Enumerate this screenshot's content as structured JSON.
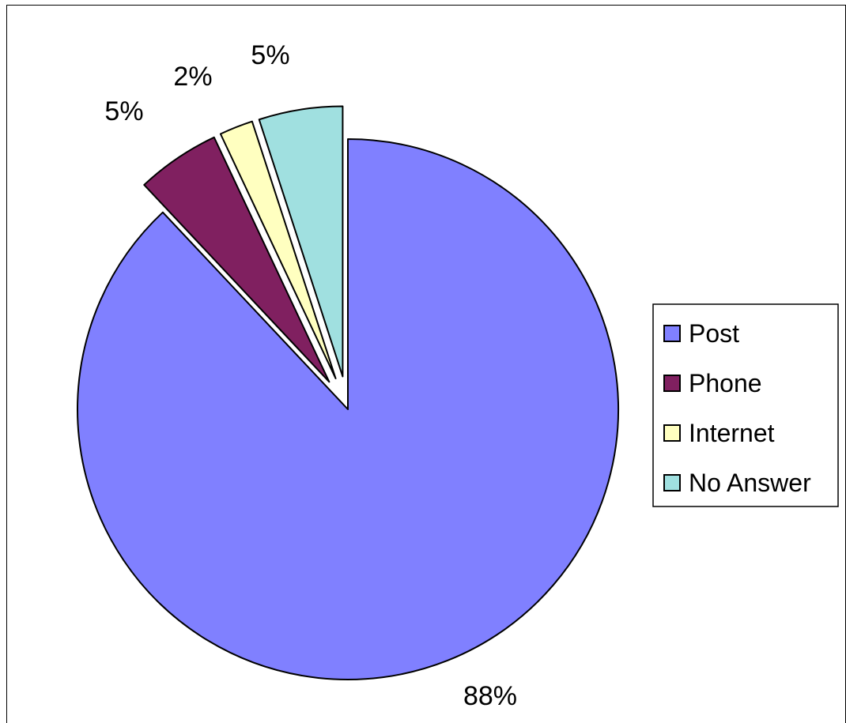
{
  "chart_data": {
    "type": "pie",
    "categories": [
      "Post",
      "Phone",
      "Internet",
      "No Answer"
    ],
    "values": [
      88,
      5,
      2,
      5
    ],
    "value_labels": [
      "88%",
      "5%",
      "2%",
      "5%"
    ],
    "exploded": [
      true,
      true,
      true,
      true
    ],
    "legend_position": "right",
    "colors": [
      "#8080ff",
      "#802060",
      "#ffffc0",
      "#a0e0e0"
    ],
    "title": ""
  }
}
